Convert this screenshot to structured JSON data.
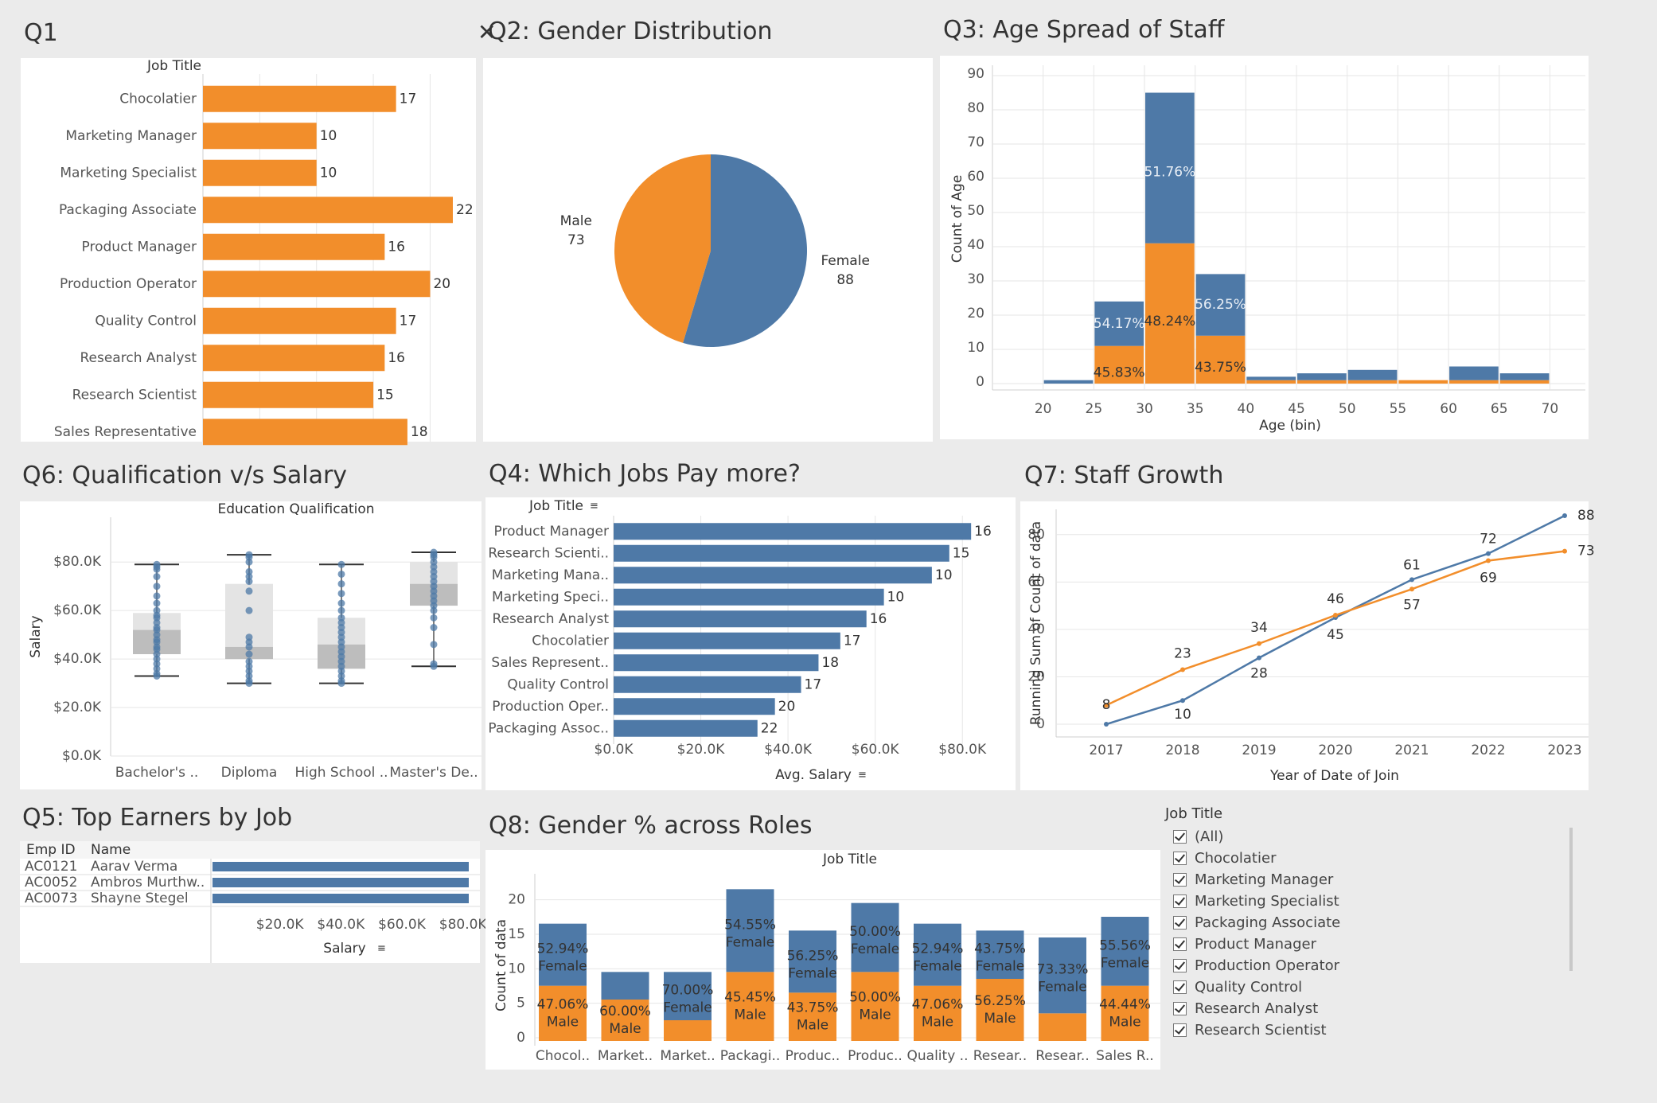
{
  "colors": {
    "orange": "#f28e2b",
    "blue": "#4e79a7",
    "grid": "#e6e6e6",
    "axis": "#cfcfcf",
    "box_light": "#e4e4e4",
    "box_dark": "#bdbdbd"
  },
  "titles": {
    "q1": "Q1",
    "q2": "Q2: Gender Distribution",
    "q3": "Q3: Age Spread of Staff",
    "q6": "Q6: Qualification v/s Salary",
    "q4": "Q4: Which Jobs Pay more?",
    "q7": "Q7: Staff Growth",
    "q5": "Q5: Top Earners by Job",
    "q8": "Q8: Gender % across Roles"
  },
  "close_icon": "close-icon",
  "chart_data": [
    {
      "id": "q1",
      "type": "bar",
      "orientation": "horizontal",
      "header": "Job Title",
      "categories": [
        "Chocolatier",
        "Marketing Manager",
        "Marketing Specialist",
        "Packaging Associate",
        "Product Manager",
        "Production Operator",
        "Quality Control",
        "Research Analyst",
        "Research Scientist",
        "Sales Representative"
      ],
      "values": [
        17,
        10,
        10,
        22,
        16,
        20,
        17,
        16,
        15,
        18
      ],
      "labels": [
        "17",
        "10",
        "10",
        "22",
        "16",
        "20",
        "17",
        "16",
        "15",
        "18"
      ],
      "color": "orange"
    },
    {
      "id": "q2",
      "type": "pie",
      "slices": [
        {
          "name": "Female",
          "value": 88,
          "label": "88",
          "color": "blue"
        },
        {
          "name": "Male",
          "value": 73,
          "label": "73",
          "color": "orange"
        }
      ]
    },
    {
      "id": "q3",
      "type": "bar",
      "stacked": true,
      "xlabel": "Age (bin)",
      "ylabel": "Count of Age",
      "ylim": [
        0,
        90
      ],
      "yticks": [
        "0",
        "10",
        "20",
        "30",
        "40",
        "50",
        "60",
        "70",
        "80",
        "90"
      ],
      "xticks": [
        "20",
        "25",
        "30",
        "35",
        "40",
        "45",
        "50",
        "55",
        "60",
        "65",
        "70"
      ],
      "bins": [
        {
          "start": 20,
          "male": 0,
          "female": 1,
          "male_label": "",
          "female_label": ""
        },
        {
          "start": 25,
          "male": 11,
          "female": 13,
          "male_label": "45.83%",
          "female_label": "54.17%"
        },
        {
          "start": 30,
          "male": 41,
          "female": 44,
          "male_label": "48.24%",
          "female_label": "51.76%"
        },
        {
          "start": 35,
          "male": 14,
          "female": 18,
          "male_label": "43.75%",
          "female_label": "56.25%"
        },
        {
          "start": 40,
          "male": 1,
          "female": 1,
          "male_label": "",
          "female_label": ""
        },
        {
          "start": 45,
          "male": 1,
          "female": 2,
          "male_label": "",
          "female_label": ""
        },
        {
          "start": 50,
          "male": 1,
          "female": 3,
          "male_label": "",
          "female_label": ""
        },
        {
          "start": 55,
          "male": 1,
          "female": 0,
          "male_label": "",
          "female_label": ""
        },
        {
          "start": 60,
          "male": 1,
          "female": 4,
          "male_label": "",
          "female_label": ""
        },
        {
          "start": 65,
          "male": 1,
          "female": 2,
          "male_label": "",
          "female_label": ""
        }
      ]
    },
    {
      "id": "q6",
      "type": "box",
      "header": "Education Qualification",
      "ylabel": "Salary",
      "yticks": [
        "$0.0K",
        "$20.0K",
        "$40.0K",
        "$60.0K",
        "$80.0K"
      ],
      "categories": [
        "Bachelor's ..",
        "Diploma",
        "High School ..",
        "Master's De.."
      ],
      "boxes": [
        {
          "min": 33,
          "q1": 42,
          "median": 52,
          "q3": 59,
          "max": 79,
          "points": [
            33,
            34,
            36,
            38,
            40,
            42,
            44,
            45,
            47,
            48,
            50,
            52,
            53,
            55,
            57,
            58,
            60,
            63,
            66,
            70,
            74,
            77,
            78,
            79
          ]
        },
        {
          "min": 30,
          "q1": 40,
          "median": 45,
          "q3": 71,
          "max": 83,
          "points": [
            30,
            31,
            33,
            35,
            37,
            39,
            42,
            45,
            47,
            49,
            60,
            68,
            72,
            74,
            76,
            80,
            82,
            83
          ]
        },
        {
          "min": 30,
          "q1": 36,
          "median": 46,
          "q3": 57,
          "max": 79,
          "points": [
            30,
            31,
            33,
            35,
            37,
            39,
            41,
            43,
            45,
            47,
            49,
            51,
            53,
            55,
            57,
            60,
            63,
            67,
            71,
            75,
            79
          ]
        },
        {
          "min": 37,
          "q1": 62,
          "median": 71,
          "q3": 80,
          "max": 84,
          "points": [
            37,
            38,
            46,
            53,
            57,
            60,
            62,
            64,
            66,
            68,
            70,
            72,
            74,
            76,
            78,
            80,
            82,
            83,
            84
          ]
        }
      ]
    },
    {
      "id": "q4",
      "type": "bar",
      "orientation": "horizontal",
      "header": "Job Title",
      "xlabel": "Avg. Salary",
      "xticks": [
        "$0.0K",
        "$20.0K",
        "$40.0K",
        "$60.0K",
        "$80.0K"
      ],
      "categories": [
        "Product Manager",
        "Research Scienti..",
        "Marketing Mana..",
        "Marketing Speci..",
        "Research Analyst",
        "Chocolatier",
        "Sales Represent..",
        "Quality Control",
        "Production Oper..",
        "Packaging Assoc.."
      ],
      "values": [
        82,
        77,
        73,
        62,
        58,
        52,
        47,
        43,
        37,
        33
      ],
      "labels": [
        "16",
        "15",
        "10",
        "10",
        "16",
        "17",
        "18",
        "17",
        "20",
        "22"
      ],
      "color": "blue"
    },
    {
      "id": "q7",
      "type": "line",
      "xlabel": "Year of Date of Join",
      "ylabel": "Running Sum of Count of data",
      "yticks": [
        "0",
        "20",
        "40",
        "60",
        "80"
      ],
      "x": [
        "2017",
        "2018",
        "2019",
        "2020",
        "2021",
        "2022",
        "2023"
      ],
      "series": [
        {
          "color": "blue",
          "values": [
            0,
            10,
            28,
            45,
            61,
            72,
            88
          ],
          "labels": [
            "",
            "10",
            "28",
            "45",
            "61",
            "72",
            "88"
          ]
        },
        {
          "color": "orange",
          "values": [
            8,
            23,
            34,
            46,
            57,
            69,
            73
          ],
          "labels": [
            "8",
            "23",
            "34",
            "46",
            "57",
            "69",
            "73"
          ]
        }
      ]
    },
    {
      "id": "q5",
      "type": "table",
      "header": "Salary",
      "columns": [
        "Emp ID",
        "Name"
      ],
      "rows": [
        {
          "id": "AC0121",
          "name": "Aarav Verma",
          "value": 84
        },
        {
          "id": "AC0052",
          "name": "Ambros Murthw..",
          "value": 84
        },
        {
          "id": "AC0073",
          "name": "Shayne Stegel",
          "value": 84
        }
      ],
      "xticks": [
        "$20.0K",
        "$40.0K",
        "$60.0K",
        "$80.0K"
      ]
    },
    {
      "id": "q8",
      "type": "bar",
      "stacked": true,
      "header": "Job Title",
      "ylabel": "Count of data",
      "yticks": [
        "0",
        "5",
        "10",
        "15",
        "20"
      ],
      "categories": [
        "Chocol..",
        "Market..",
        "Market..",
        "Packagi..",
        "Produc..",
        "Produc..",
        "Quality ..",
        "Resear..",
        "Resear..",
        "Sales R.."
      ],
      "male": [
        8,
        6,
        3,
        10,
        7,
        10,
        8,
        9,
        4,
        8
      ],
      "female": [
        9,
        4,
        7,
        12,
        9,
        10,
        9,
        7,
        11,
        10
      ],
      "male_labels": [
        "47.06%\nMale",
        "60.00%\nMale",
        "",
        "45.45%\nMale",
        "43.75%\nMale",
        "50.00%\nMale",
        "47.06%\nMale",
        "56.25%\nMale",
        "",
        "44.44%\nMale"
      ],
      "female_labels": [
        "52.94%\nFemale",
        "",
        "70.00%\nFemale",
        "54.55%\nFemale",
        "56.25%\nFemale",
        "50.00%\nFemale",
        "52.94%\nFemale",
        "43.75%\nFemale",
        "73.33%\nFemale",
        "55.56%\nFemale"
      ]
    }
  ],
  "filter": {
    "header": "Job Title",
    "items": [
      "(All)",
      "Chocolatier",
      "Marketing Manager",
      "Marketing Specialist",
      "Packaging Associate",
      "Product Manager",
      "Production Operator",
      "Quality Control",
      "Research Analyst",
      "Research Scientist"
    ]
  }
}
